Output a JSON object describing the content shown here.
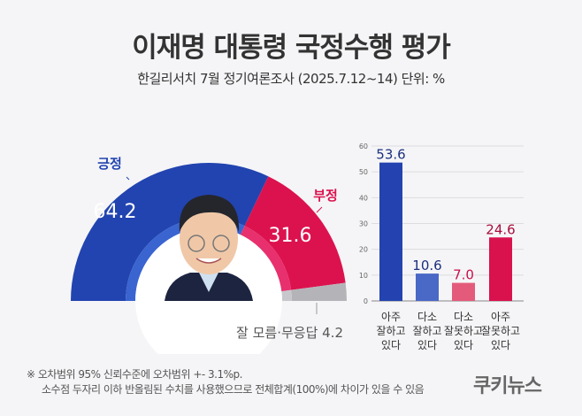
{
  "header": {
    "title": "이재명 대통령 국정수행 평가",
    "subtitle": "한길리서치 7월 정기여론조사 (2025.7.12~14) 단위: %"
  },
  "chart_data": [
    {
      "type": "pie",
      "subtype": "half-donut",
      "slices": [
        {
          "name": "긍정",
          "value": 64.2,
          "color": "#2244b0"
        },
        {
          "name": "부정",
          "value": 31.6,
          "color": "#dc124e"
        },
        {
          "name": "잘 모름·무응답",
          "value": 4.2,
          "color": "#b4b4b8"
        }
      ],
      "labels": {
        "pos_value": "64.2",
        "neg_value": "31.6",
        "dk_label": "잘 모름·무응답 4.2"
      }
    },
    {
      "type": "bar",
      "categories": [
        [
          "아주",
          "잘하고",
          "있다"
        ],
        [
          "다소",
          "잘하고",
          "있다"
        ],
        [
          "다소",
          "잘못하고",
          "있다"
        ],
        [
          "아주",
          "잘못하고",
          "있다"
        ]
      ],
      "values": [
        53.6,
        10.6,
        7.0,
        24.6
      ],
      "value_labels": [
        "53.6",
        "10.6",
        "7.0",
        "24.6"
      ],
      "colors": [
        "#2443b0",
        "#4a68c6",
        "#e45a7a",
        "#d9124e"
      ],
      "label_colors": [
        "#1c2f80",
        "#1c2f80",
        "#c8104a",
        "#a80d3c"
      ],
      "ylim": [
        0,
        60
      ],
      "yticks": [
        0,
        10,
        20,
        30,
        40,
        50,
        60
      ],
      "grid": true
    }
  ],
  "footer": {
    "note1": "※ 오차범위 95% 신뢰수준에 오차범위 +- 3.1%p.",
    "note2": "소수점 두자리 이하 반올림된 수치를 사용했으므로 전체합계(100%)에 차이가 있을 수 있음",
    "logo": "쿠키뉴스"
  }
}
